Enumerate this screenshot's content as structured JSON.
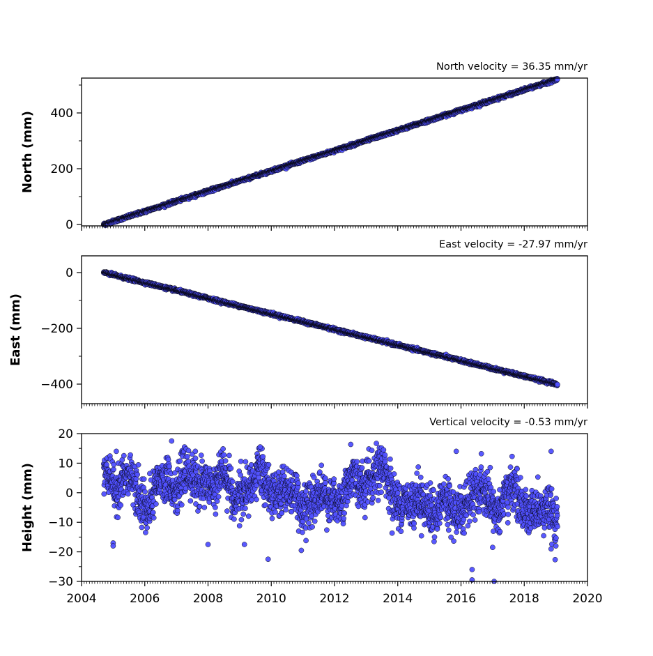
{
  "chart_data": [
    {
      "type": "scatter",
      "title": "North velocity = 36.35 mm/yr",
      "xlabel": "",
      "ylabel": "North (mm)",
      "xlim": [
        2004,
        2020
      ],
      "ylim": [
        -5,
        525
      ],
      "yticks": [
        0,
        200,
        400
      ],
      "ytick_labels": [
        "0",
        "200",
        "400"
      ],
      "velocity_mm_per_yr": 36.35,
      "x_range": [
        2004.7,
        2019.05
      ],
      "y_at_x_range": [
        0,
        521
      ],
      "noise_mm": 2.5,
      "marker_color": "#5050ff",
      "marker_edge": "#000000",
      "grid": false,
      "points": [
        {
          "x": 2004.7,
          "y": 0
        },
        {
          "x": 2006.0,
          "y": 47
        },
        {
          "x": 2008.0,
          "y": 120
        },
        {
          "x": 2010.0,
          "y": 193
        },
        {
          "x": 2012.0,
          "y": 265
        },
        {
          "x": 2014.0,
          "y": 338
        },
        {
          "x": 2016.0,
          "y": 411
        },
        {
          "x": 2018.0,
          "y": 484
        },
        {
          "x": 2019.05,
          "y": 521
        }
      ]
    },
    {
      "type": "scatter",
      "title": "East velocity = -27.97 mm/yr",
      "xlabel": "",
      "ylabel": "East (mm)",
      "xlim": [
        2004,
        2020
      ],
      "ylim": [
        -470,
        60
      ],
      "yticks": [
        0,
        -200,
        -400
      ],
      "ytick_labels": [
        "0",
        "−200",
        "−400"
      ],
      "velocity_mm_per_yr": -27.97,
      "x_range": [
        2004.7,
        2019.05
      ],
      "y_at_x_range": [
        0,
        -401
      ],
      "noise_mm": 2.5,
      "marker_color": "#5050ff",
      "marker_edge": "#000000",
      "grid": false,
      "points": [
        {
          "x": 2004.7,
          "y": 0
        },
        {
          "x": 2006.0,
          "y": -36
        },
        {
          "x": 2008.0,
          "y": -92
        },
        {
          "x": 2010.0,
          "y": -148
        },
        {
          "x": 2012.0,
          "y": -204
        },
        {
          "x": 2014.0,
          "y": -260
        },
        {
          "x": 2016.0,
          "y": -316
        },
        {
          "x": 2018.0,
          "y": -372
        },
        {
          "x": 2019.05,
          "y": -401
        }
      ]
    },
    {
      "type": "scatter",
      "title": "Vertical velocity = -0.53 mm/yr",
      "xlabel": "",
      "ylabel": "Height (mm)",
      "xlim": [
        2004,
        2020
      ],
      "ylim": [
        -30,
        20
      ],
      "yticks": [
        20,
        10,
        0,
        -10,
        -20,
        -30
      ],
      "ytick_labels": [
        "20",
        "10",
        "0",
        "−10",
        "−20",
        "−30"
      ],
      "xticks": [
        2004,
        2006,
        2008,
        2010,
        2012,
        2014,
        2016,
        2018,
        2020
      ],
      "xtick_labels": [
        "2004",
        "2006",
        "2008",
        "2010",
        "2012",
        "2014",
        "2016",
        "2018",
        "2020"
      ],
      "velocity_mm_per_yr": -0.53,
      "x_range": [
        2004.7,
        2019.05
      ],
      "noise_mm": 5,
      "marker_color": "#5050ff",
      "marker_edge": "#000000",
      "grid": false,
      "outliers": [
        {
          "x": 2006.85,
          "y": 17.5
        },
        {
          "x": 2009.65,
          "y": 15.5
        },
        {
          "x": 2005.1,
          "y": 14
        },
        {
          "x": 2007.6,
          "y": 14
        },
        {
          "x": 2015.85,
          "y": 14
        },
        {
          "x": 2018.85,
          "y": 14
        },
        {
          "x": 2009.9,
          "y": -22.5
        },
        {
          "x": 2010.95,
          "y": -19.5
        },
        {
          "x": 2016.35,
          "y": -26
        },
        {
          "x": 2016.35,
          "y": -29.5
        },
        {
          "x": 2017.05,
          "y": -30
        },
        {
          "x": 2017.0,
          "y": -18.5
        },
        {
          "x": 2018.85,
          "y": -19
        },
        {
          "x": 2019.0,
          "y": -18
        },
        {
          "x": 2008.0,
          "y": -17.5
        },
        {
          "x": 2015.15,
          "y": -16.5
        },
        {
          "x": 2005.0,
          "y": -17
        },
        {
          "x": 2005.0,
          "y": -18
        },
        {
          "x": 2009.15,
          "y": -17.5
        }
      ]
    }
  ]
}
